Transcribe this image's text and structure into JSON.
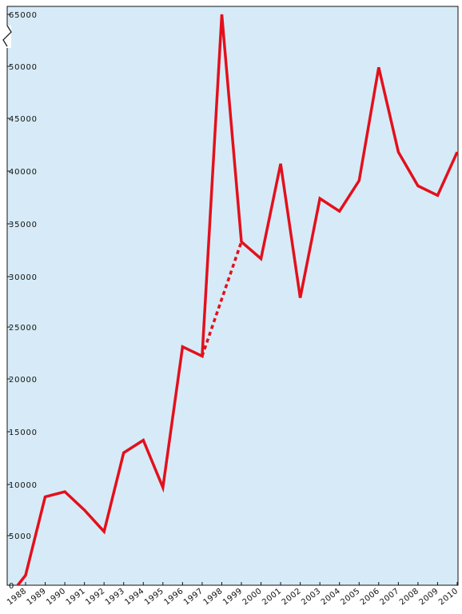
{
  "chart_data": {
    "type": "line",
    "title": "",
    "xlabel": "",
    "ylabel": "",
    "grid": false,
    "axis_break": true,
    "background_color": "#d6ebf7",
    "line_color": "#e3101c",
    "y_ticks": [
      0,
      5000,
      10000,
      15000,
      20000,
      25000,
      30000,
      35000,
      40000,
      45000,
      50000,
      65000
    ],
    "y_tick_labels": [
      "0",
      "5000",
      "10000",
      "15000",
      "20000",
      "25000",
      "30000",
      "35000",
      "40000",
      "45000",
      "50000",
      "65000"
    ],
    "x_tick_labels": [
      "1988",
      "1989",
      "1990",
      "1991",
      "1992",
      "1993",
      "1994",
      "1995",
      "1996",
      "1997",
      "1998",
      "1999",
      "2000",
      "2001",
      "2002",
      "2003",
      "2004",
      "2005",
      "2006",
      "2007",
      "2008",
      "2009",
      "2010"
    ],
    "series": [
      {
        "style": "solid",
        "points": [
          {
            "x": 1987.6,
            "y": 0
          },
          {
            "x": 1988,
            "y": 1000
          },
          {
            "x": 1989,
            "y": 8800
          },
          {
            "x": 1990,
            "y": 9300
          },
          {
            "x": 1991,
            "y": 7500
          },
          {
            "x": 1992,
            "y": 5400
          },
          {
            "x": 1993,
            "y": 13000
          },
          {
            "x": 1994,
            "y": 14200
          },
          {
            "x": 1995,
            "y": 9700
          },
          {
            "x": 1996,
            "y": 23100
          },
          {
            "x": 1997,
            "y": 22200
          },
          {
            "x": 1998,
            "y": 65000
          },
          {
            "x": 1999,
            "y": 33300
          },
          {
            "x": 2000,
            "y": 31700
          },
          {
            "x": 2001,
            "y": 40700
          },
          {
            "x": 2002,
            "y": 27900
          },
          {
            "x": 2003,
            "y": 37400
          },
          {
            "x": 2004,
            "y": 36200
          },
          {
            "x": 2005,
            "y": 39100
          },
          {
            "x": 2006,
            "y": 49900
          },
          {
            "x": 2007,
            "y": 41800
          },
          {
            "x": 2008,
            "y": 38600
          },
          {
            "x": 2009,
            "y": 37700
          },
          {
            "x": 2010,
            "y": 41800
          }
        ]
      },
      {
        "style": "dotted",
        "points": [
          {
            "x": 1997,
            "y": 22200
          },
          {
            "x": 1999,
            "y": 33300
          }
        ]
      }
    ]
  }
}
